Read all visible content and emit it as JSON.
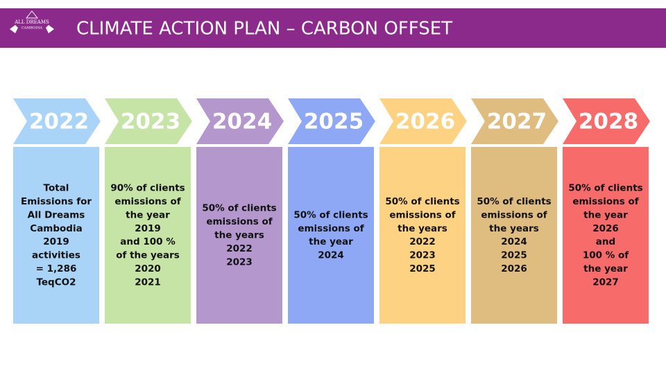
{
  "header": {
    "title": "CLIMATE ACTION PLAN – CARBON OFFSET",
    "logo": [
      "ALL DREAMS",
      "CAMBODIA"
    ]
  },
  "columns": [
    {
      "year": "2022",
      "color": "#a9d3f7",
      "lines": [
        "Total",
        "Emissions for",
        "All Dreams",
        "Cambodia",
        "2019",
        "activities",
        "= 1,286",
        "TeqCO2"
      ]
    },
    {
      "year": "2023",
      "color": "#c6e4a6",
      "lines": [
        "90% of clients",
        "emissions of",
        "the year",
        "2019",
        "and 100 %",
        "of the years",
        "2020",
        "2021"
      ]
    },
    {
      "year": "2024",
      "color": "#b497cd",
      "lines": [
        "50% of clients",
        "emissions of",
        "the years",
        "2022",
        "2023"
      ]
    },
    {
      "year": "2025",
      "color": "#8fa8f6",
      "lines": [
        "50% of clients",
        "emissions of",
        "the year",
        "2024"
      ]
    },
    {
      "year": "2026",
      "color": "#fdd283",
      "lines": [
        "50% of clients",
        "emissions of",
        "the years",
        "2022",
        "2023",
        "2025"
      ]
    },
    {
      "year": "2027",
      "color": "#dfbc80",
      "lines": [
        "50% of clients",
        "emissions of",
        "the years",
        "2024",
        "2025",
        "2026"
      ]
    },
    {
      "year": "2028",
      "color": "#f76b6b",
      "lines": [
        "50% of clients",
        "emissions of",
        "the year",
        "2026",
        "and",
        "100 % of",
        "the year",
        "2027"
      ]
    }
  ]
}
